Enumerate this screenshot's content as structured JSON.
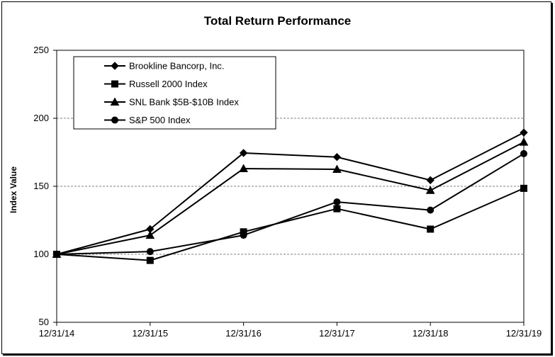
{
  "chart_data": {
    "type": "line",
    "title": "Total Return Performance",
    "xlabel": "",
    "ylabel": "Index Value",
    "categories": [
      "12/31/14",
      "12/31/15",
      "12/31/16",
      "12/31/17",
      "12/31/18",
      "12/31/19"
    ],
    "ylim": [
      50,
      250
    ],
    "yticks": [
      50,
      100,
      150,
      200,
      250
    ],
    "grid": "horizontal dashed",
    "legend": "top-left",
    "series": [
      {
        "name": "Brookline Bancorp, Inc.",
        "marker": "diamond",
        "values": [
          100,
          118.5,
          174.5,
          171.5,
          154.5,
          189.5
        ]
      },
      {
        "name": "Russell 2000 Index",
        "marker": "square",
        "values": [
          100,
          95.5,
          116.5,
          133.5,
          118.5,
          148.5
        ]
      },
      {
        "name": "SNL Bank $5B-$10B Index",
        "marker": "triangle",
        "values": [
          100,
          114,
          163,
          162.5,
          147,
          182.5
        ]
      },
      {
        "name": "S&P 500 Index",
        "marker": "circle",
        "values": [
          100,
          102,
          114,
          138.5,
          132.5,
          174
        ]
      }
    ],
    "colors": {
      "line": "#000000",
      "grid": "#808080"
    }
  }
}
